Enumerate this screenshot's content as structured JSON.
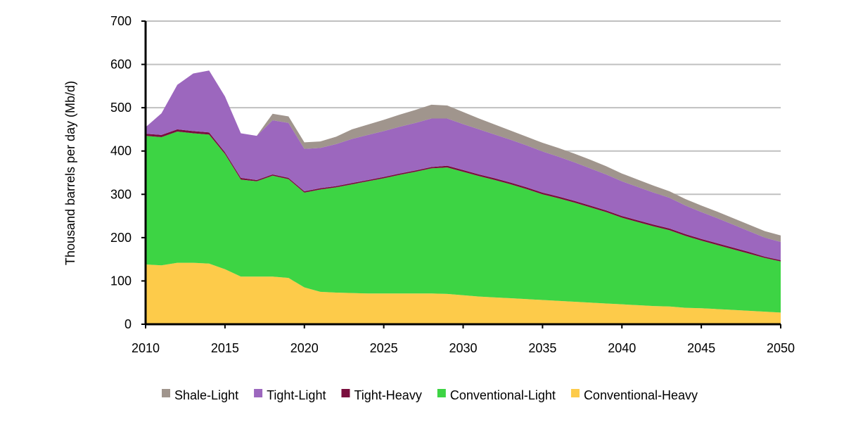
{
  "chart_data": {
    "type": "area",
    "stacked": true,
    "title": "",
    "xlabel": "",
    "ylabel": "Thousand barrels per day (Mb/d)",
    "xlim": [
      2010,
      2050
    ],
    "ylim": [
      0,
      700
    ],
    "x_ticks": [
      "2010",
      "2015",
      "2020",
      "2025",
      "2030",
      "2035",
      "2040",
      "2045",
      "2050"
    ],
    "y_ticks": [
      "0",
      "100",
      "200",
      "300",
      "400",
      "500",
      "600",
      "700"
    ],
    "grid": "horizontal",
    "legend_position": "bottom",
    "x": [
      2010,
      2011,
      2012,
      2013,
      2014,
      2015,
      2016,
      2017,
      2018,
      2019,
      2020,
      2021,
      2022,
      2023,
      2024,
      2025,
      2026,
      2027,
      2028,
      2029,
      2030,
      2031,
      2032,
      2033,
      2034,
      2035,
      2036,
      2037,
      2038,
      2039,
      2040,
      2041,
      2042,
      2043,
      2044,
      2045,
      2046,
      2047,
      2048,
      2049,
      2050
    ],
    "series": [
      {
        "name": "Conventional-Heavy",
        "color": "#fdcb4a",
        "values": [
          138,
          136,
          142,
          142,
          140,
          127,
          110,
          110,
          110,
          107,
          85,
          75,
          73,
          72,
          71,
          71,
          71,
          71,
          71,
          70,
          67,
          64,
          62,
          60,
          58,
          56,
          54,
          52,
          50,
          48,
          46,
          44,
          42,
          41,
          38,
          37,
          35,
          33,
          31,
          29,
          27
        ]
      },
      {
        "name": "Conventional-Light",
        "color": "#3dd444",
        "values": [
          297,
          296,
          303,
          299,
          298,
          266,
          224,
          220,
          233,
          228,
          219,
          236,
          243,
          251,
          259,
          266,
          274,
          281,
          289,
          292,
          285,
          278,
          271,
          263,
          254,
          244,
          237,
          229,
          220,
          211,
          200,
          192,
          184,
          176,
          166,
          156,
          148,
          140,
          132,
          124,
          118
        ]
      },
      {
        "name": "Tight-Heavy",
        "color": "#7a0e3e",
        "values": [
          5,
          5,
          5,
          5,
          5,
          4,
          4,
          3,
          3,
          3,
          3,
          3,
          3,
          3,
          3,
          3,
          3,
          3,
          3,
          4,
          4,
          4,
          4,
          4,
          4,
          4,
          4,
          4,
          4,
          4,
          4,
          4,
          4,
          4,
          4,
          4,
          4,
          4,
          4,
          3,
          3
        ]
      },
      {
        "name": "Tight-Light",
        "color": "#9c67be",
        "values": [
          15,
          50,
          103,
          133,
          143,
          129,
          103,
          102,
          125,
          127,
          98,
          93,
          97,
          102,
          104,
          106,
          108,
          110,
          112,
          109,
          106,
          104,
          101,
          99,
          97,
          95,
          92,
          89,
          86,
          83,
          80,
          77,
          74,
          71,
          66,
          62,
          58,
          53,
          48,
          44,
          42
        ]
      },
      {
        "name": "Shale-Light",
        "color": "#a0958d",
        "values": [
          0,
          0,
          0,
          0,
          0,
          0,
          0,
          0,
          15,
          15,
          15,
          15,
          17,
          22,
          24,
          26,
          28,
          30,
          32,
          30,
          28,
          25,
          23,
          21,
          20,
          20,
          20,
          20,
          20,
          19,
          18,
          17,
          16,
          15,
          15,
          15,
          15,
          15,
          15,
          15,
          15
        ]
      }
    ],
    "legend_order": [
      "Shale-Light",
      "Tight-Light",
      "Tight-Heavy",
      "Conventional-Light",
      "Conventional-Heavy"
    ]
  }
}
